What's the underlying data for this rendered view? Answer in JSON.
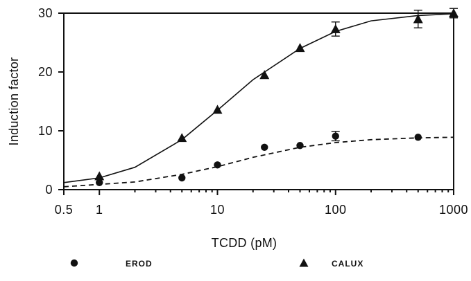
{
  "chart_data": {
    "type": "scatter",
    "title": "",
    "xlabel": "TCDD (pM)",
    "ylabel": "Induction factor",
    "xscale": "log",
    "xlim": [
      0.5,
      1000
    ],
    "ylim": [
      0,
      30
    ],
    "grid": false,
    "legend_placement": "bottom",
    "x_tick_labels": [
      "0.5",
      "1",
      "10",
      "100",
      "1000"
    ],
    "x_ticks": [
      0.5,
      1,
      10,
      100,
      1000
    ],
    "y_tick_labels": [
      "0",
      "10",
      "20",
      "30"
    ],
    "y_ticks": [
      0,
      10,
      20,
      30
    ],
    "colors": {
      "ink": "#111111",
      "background": "#ffffff"
    },
    "series": [
      {
        "name": "EROD",
        "marker": "circle",
        "fit_line": "dashed",
        "points": [
          {
            "x": 1,
            "y": 1.2
          },
          {
            "x": 5,
            "y": 2.0
          },
          {
            "x": 10,
            "y": 4.2
          },
          {
            "x": 25,
            "y": 7.2
          },
          {
            "x": 50,
            "y": 7.5
          },
          {
            "x": 100,
            "y": 9.1,
            "error": 0.8
          },
          {
            "x": 500,
            "y": 8.9
          }
        ],
        "fit_points": [
          {
            "x": 0.5,
            "y": 0.5
          },
          {
            "x": 1,
            "y": 0.9
          },
          {
            "x": 2,
            "y": 1.3
          },
          {
            "x": 5,
            "y": 2.6
          },
          {
            "x": 10,
            "y": 3.9
          },
          {
            "x": 20,
            "y": 5.5
          },
          {
            "x": 50,
            "y": 7.2
          },
          {
            "x": 100,
            "y": 8.0
          },
          {
            "x": 200,
            "y": 8.5
          },
          {
            "x": 500,
            "y": 8.8
          },
          {
            "x": 1000,
            "y": 8.9
          }
        ]
      },
      {
        "name": "CALUX",
        "marker": "triangle",
        "fit_line": "solid",
        "points": [
          {
            "x": 1,
            "y": 2.3
          },
          {
            "x": 5,
            "y": 8.8
          },
          {
            "x": 10,
            "y": 13.6
          },
          {
            "x": 25,
            "y": 19.5
          },
          {
            "x": 50,
            "y": 24.1
          },
          {
            "x": 100,
            "y": 27.3,
            "error": 1.2
          },
          {
            "x": 500,
            "y": 29.0,
            "error": 1.5
          },
          {
            "x": 1000,
            "y": 30.0,
            "error": 0.8
          }
        ],
        "fit_points": [
          {
            "x": 0.5,
            "y": 1.2
          },
          {
            "x": 1,
            "y": 2.0
          },
          {
            "x": 2,
            "y": 3.8
          },
          {
            "x": 5,
            "y": 8.5
          },
          {
            "x": 10,
            "y": 13.5
          },
          {
            "x": 20,
            "y": 18.7
          },
          {
            "x": 50,
            "y": 24.0
          },
          {
            "x": 100,
            "y": 26.9
          },
          {
            "x": 200,
            "y": 28.7
          },
          {
            "x": 500,
            "y": 29.6
          },
          {
            "x": 1000,
            "y": 29.9
          }
        ]
      }
    ]
  }
}
